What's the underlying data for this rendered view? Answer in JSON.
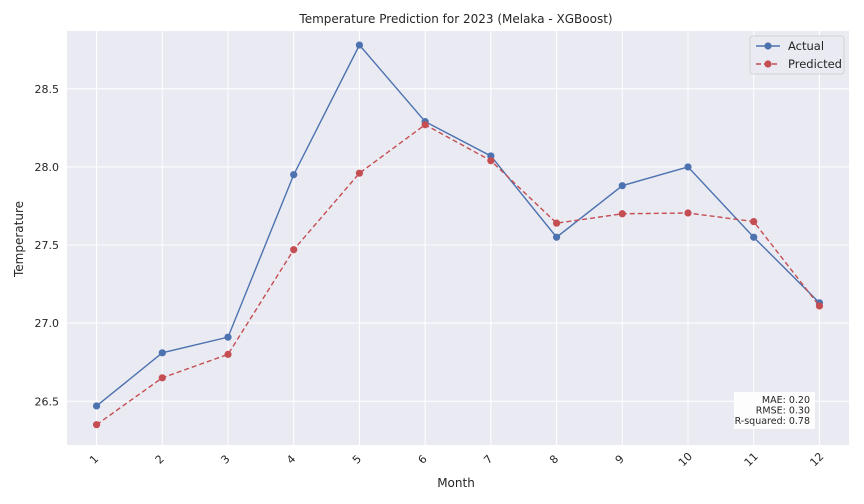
{
  "chart_data": {
    "type": "line",
    "title": "Temperature Prediction for 2023 (Melaka - XGBoost)",
    "xlabel": "Month",
    "ylabel": "Temperature",
    "x": [
      1,
      2,
      3,
      4,
      5,
      6,
      7,
      8,
      9,
      10,
      11,
      12
    ],
    "x_tick_labels": [
      "1",
      "2",
      "3",
      "4",
      "5",
      "6",
      "7",
      "8",
      "9",
      "10",
      "11",
      "12"
    ],
    "y_ticks": [
      26.5,
      27.0,
      27.5,
      28.0,
      28.5
    ],
    "y_tick_labels": [
      "26.5",
      "27.0",
      "27.5",
      "28.0",
      "28.5"
    ],
    "ylim": [
      26.22,
      28.87
    ],
    "xlim": [
      0.55,
      12.45
    ],
    "grid": true,
    "legend_position": "top-right",
    "series": [
      {
        "name": "Actual",
        "color": "#4c72b0",
        "style": "solid",
        "marker": "circle",
        "values": [
          26.47,
          26.81,
          26.91,
          27.95,
          28.78,
          28.29,
          28.07,
          27.55,
          27.88,
          28.0,
          27.55,
          27.13
        ]
      },
      {
        "name": "Predicted",
        "color": "#c44e52",
        "style": "dashed",
        "marker": "circle",
        "values": [
          26.35,
          26.65,
          26.8,
          27.47,
          27.96,
          28.27,
          28.04,
          27.64,
          27.7,
          27.705,
          27.65,
          27.11
        ]
      }
    ],
    "annotation": {
      "position": "bottom-right",
      "lines": [
        "MAE: 0.20",
        "RMSE: 0.30",
        "R-squared: 0.78"
      ]
    }
  },
  "colors": {
    "plot_background": "#eaeaf2",
    "grid": "#ffffff"
  }
}
